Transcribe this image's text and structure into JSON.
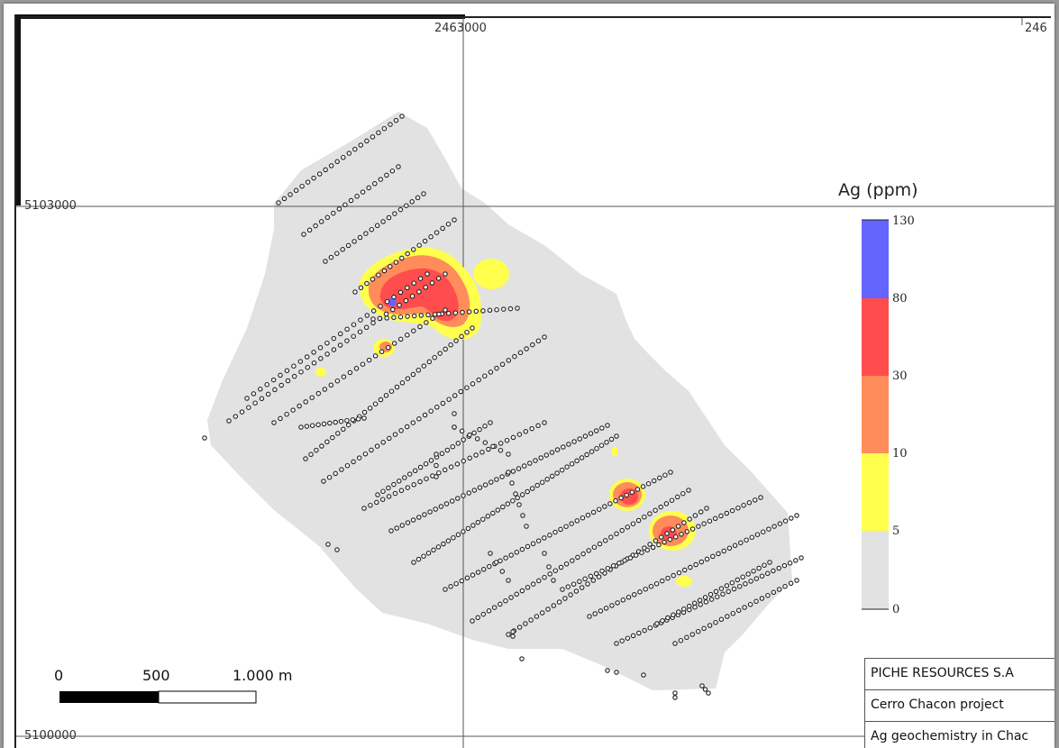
{
  "map": {
    "grid_labels": {
      "x_top_1": "2463000",
      "x_top_2": "246",
      "y_left_1": "5103000",
      "y_left_2": "5100000"
    },
    "legend": {
      "title": "Ag (ppm)",
      "breaks": [
        "130",
        "80",
        "30",
        "10",
        "5",
        "0"
      ],
      "classes": [
        {
          "range": "0-5",
          "color": "#e2e2e2"
        },
        {
          "range": "5-10",
          "color": "#ffff4d"
        },
        {
          "range": "10-30",
          "color": "#ff8c5a"
        },
        {
          "range": "30-80",
          "color": "#ff4d4d"
        },
        {
          "range": "80-130",
          "color": "#6464ff"
        }
      ]
    },
    "scale_bar": {
      "labels": [
        "0",
        "500",
        "1.000 m"
      ]
    },
    "title_block": {
      "company": "PICHE RESOURCES S.A",
      "project": "Cerro Chacon project",
      "subject": "Ag geochemistry in Chac"
    },
    "colors": {
      "background_survey": "#e2e2e2",
      "anomaly_low": "#ffff4d",
      "anomaly_mid": "#ff8c5a",
      "anomaly_high": "#ff4d4d",
      "anomaly_peak": "#6464ff",
      "sample_point": "#222222"
    }
  }
}
